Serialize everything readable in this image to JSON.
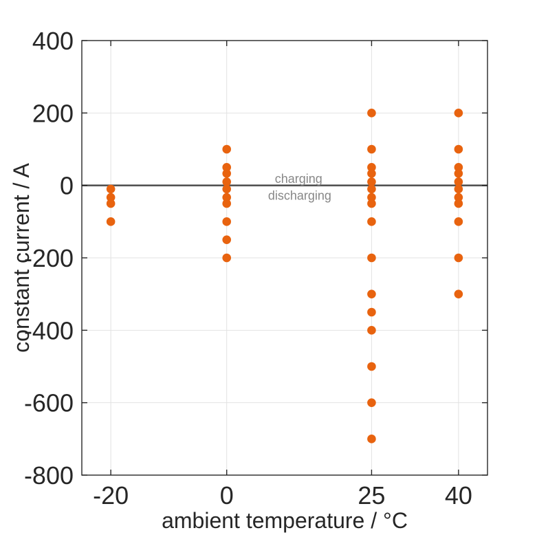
{
  "figure": {
    "background_color": "#ffffff"
  },
  "chart_data": {
    "type": "scatter",
    "title": "",
    "xlabel": "ambient temperature / °C",
    "ylabel": "constant current / A",
    "xlim": [
      -25,
      45
    ],
    "ylim": [
      -800,
      400
    ],
    "xticks": [
      -20,
      0,
      25,
      40
    ],
    "yticks": [
      -800,
      -600,
      -400,
      -200,
      0,
      200,
      400
    ],
    "grid": true,
    "legend": "none",
    "marker": {
      "shape": "circle",
      "color": "#e8630f",
      "radius_px": 6.3
    },
    "zero_line": {
      "value": 0,
      "color": "#545454"
    },
    "axis_color": "#262626",
    "grid_color": "#e2e2e2",
    "annotation_color": "#878787",
    "annotations": [
      {
        "text": "charging",
        "x": 12.4,
        "y": 7
      },
      {
        "text": "discharging",
        "x": 12.6,
        "y": -40
      }
    ],
    "groups": [
      {
        "temperature_c": -20,
        "currents_a": [
          -10,
          -33,
          -50,
          -100
        ]
      },
      {
        "temperature_c": 0,
        "currents_a": [
          100,
          50,
          33,
          10,
          -10,
          -33,
          -50,
          -100,
          -150,
          -200
        ]
      },
      {
        "temperature_c": 25,
        "currents_a": [
          200,
          100,
          50,
          33,
          10,
          -10,
          -33,
          -50,
          -100,
          -200,
          -300,
          -350,
          -400,
          -500,
          -600,
          -700
        ]
      },
      {
        "temperature_c": 40,
        "currents_a": [
          200,
          100,
          50,
          33,
          10,
          -10,
          -33,
          -50,
          -100,
          -200,
          -300
        ]
      }
    ]
  }
}
